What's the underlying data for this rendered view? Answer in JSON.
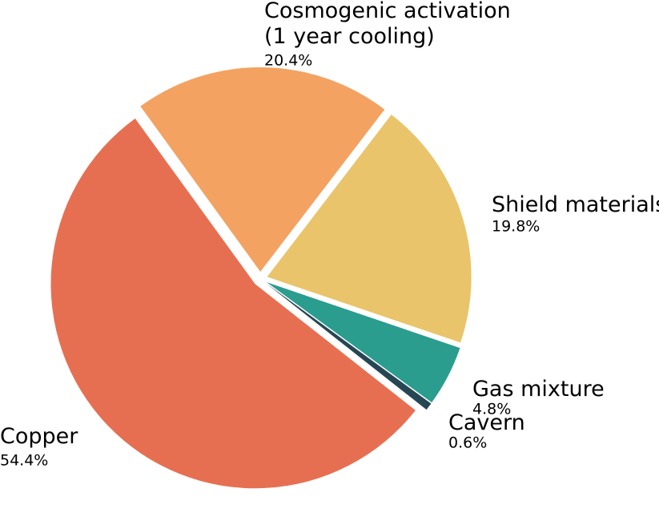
{
  "chart_data": {
    "type": "pie",
    "labels": [
      "Copper",
      "Cosmogenic activation\n(1 year cooling)",
      "Shield materials",
      "Gas mixture",
      "Cavern"
    ],
    "values": [
      54.4,
      20.4,
      19.8,
      4.8,
      0.6
    ],
    "value_labels": [
      "54.4%",
      "20.4%",
      "19.8%",
      "4.8%",
      "0.6%"
    ],
    "colors": [
      "#e76f51",
      "#f4a261",
      "#e9c46a",
      "#2a9d8f",
      "#264653"
    ]
  }
}
